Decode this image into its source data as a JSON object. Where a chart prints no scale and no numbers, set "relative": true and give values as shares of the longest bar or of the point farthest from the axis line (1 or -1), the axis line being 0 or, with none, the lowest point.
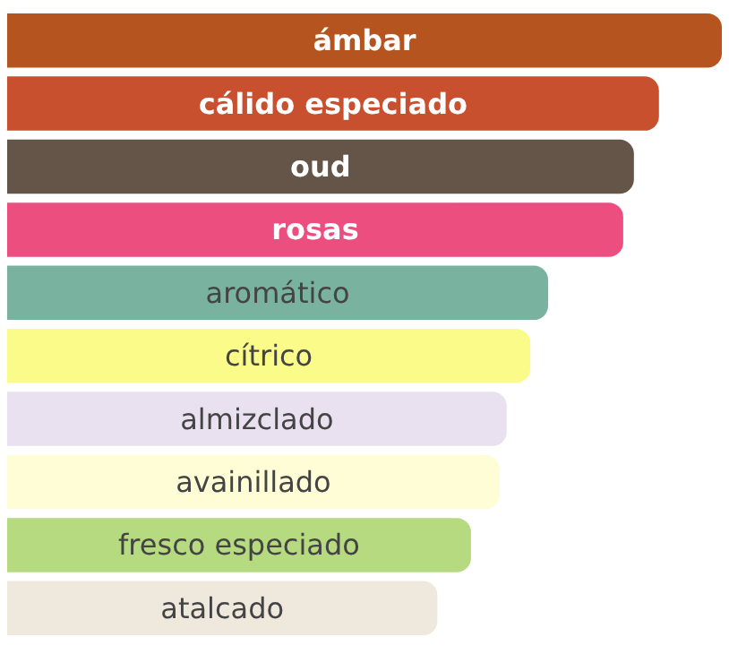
{
  "chart_data": {
    "type": "bar",
    "orientation": "horizontal",
    "relative": true,
    "categories": [
      "ámbar",
      "cálido especiado",
      "oud",
      "rosas",
      "aromático",
      "cítrico",
      "almizclado",
      "avainillado",
      "fresco especiado",
      "atalcado"
    ],
    "values": [
      1,
      0.912,
      0.877,
      0.862,
      0.757,
      0.732,
      0.699,
      0.689,
      0.649,
      0.602
    ],
    "colors": [
      "#b5541f",
      "#c8502f",
      "#645548",
      "#ec4f7f",
      "#79b3a0",
      "#fbfb8a",
      "#e9e1ef",
      "#fefdd5",
      "#b5da80",
      "#efe8dd"
    ]
  }
}
